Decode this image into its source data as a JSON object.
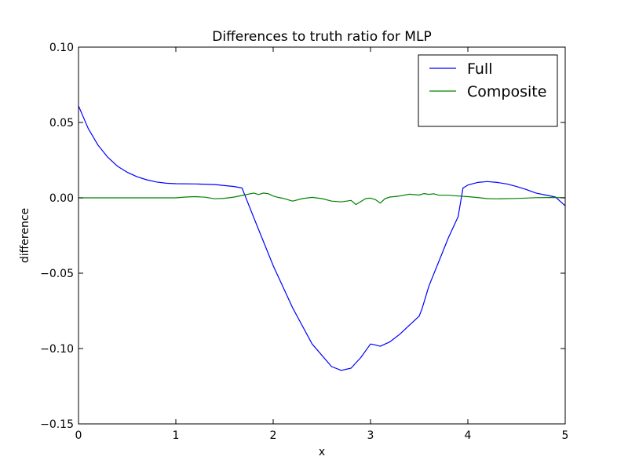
{
  "chart_data": {
    "type": "line",
    "title": "Differences to truth ratio for MLP",
    "xlabel": "x",
    "ylabel": "difference",
    "xlim": [
      0,
      5
    ],
    "ylim": [
      -0.15,
      0.1
    ],
    "xticks": [
      0,
      1,
      2,
      3,
      4,
      5
    ],
    "xtick_labels": [
      "0",
      "1",
      "2",
      "3",
      "4",
      "5"
    ],
    "yticks": [
      -0.15,
      -0.1,
      -0.05,
      0.0,
      0.05,
      0.1
    ],
    "ytick_labels": [
      "−0.15",
      "−0.10",
      "−0.05",
      "0.00",
      "0.05",
      "0.10"
    ],
    "grid": false,
    "legend_position": "top-right",
    "series": [
      {
        "name": "Full",
        "color": "#0000ff",
        "x": [
          0,
          0.1,
          0.2,
          0.3,
          0.4,
          0.5,
          0.6,
          0.7,
          0.8,
          0.9,
          1.0,
          1.2,
          1.4,
          1.6,
          1.68,
          1.8,
          2.0,
          2.2,
          2.4,
          2.6,
          2.7,
          2.8,
          2.9,
          3.0,
          3.04,
          3.1,
          3.2,
          3.3,
          3.4,
          3.5,
          3.53,
          3.6,
          3.7,
          3.8,
          3.9,
          3.95,
          4.0,
          4.1,
          4.2,
          4.3,
          4.4,
          4.5,
          4.6,
          4.7,
          4.8,
          4.9,
          5.0
        ],
        "y": [
          0.061,
          0.046,
          0.035,
          0.027,
          0.021,
          0.017,
          0.014,
          0.012,
          0.0105,
          0.0097,
          0.0094,
          0.0092,
          0.0088,
          0.0075,
          0.0065,
          -0.013,
          -0.045,
          -0.073,
          -0.097,
          -0.112,
          -0.1145,
          -0.113,
          -0.106,
          -0.097,
          -0.0975,
          -0.0985,
          -0.0955,
          -0.0905,
          -0.0845,
          -0.0785,
          -0.0735,
          -0.0585,
          -0.0425,
          -0.0265,
          -0.0125,
          0.0065,
          0.0085,
          0.0102,
          0.0108,
          0.0102,
          0.0092,
          0.0075,
          0.0055,
          0.0032,
          0.0018,
          0.0005,
          -0.0053
        ]
      },
      {
        "name": "Composite",
        "color": "#008000",
        "x": [
          0,
          0.3,
          0.6,
          0.9,
          1.0,
          1.1,
          1.2,
          1.3,
          1.4,
          1.5,
          1.6,
          1.7,
          1.8,
          1.85,
          1.9,
          1.95,
          2.0,
          2.05,
          2.1,
          2.2,
          2.3,
          2.4,
          2.5,
          2.6,
          2.7,
          2.8,
          2.85,
          2.9,
          2.95,
          3.0,
          3.05,
          3.1,
          3.15,
          3.2,
          3.3,
          3.4,
          3.5,
          3.55,
          3.6,
          3.65,
          3.7,
          3.8,
          3.9,
          4.0,
          4.1,
          4.2,
          4.3,
          4.5,
          4.7,
          4.85,
          5.0
        ],
        "y": [
          0.0,
          0.0,
          0.0,
          0.0,
          0.0,
          0.0005,
          0.0008,
          0.0004,
          -0.0006,
          -0.0003,
          0.0005,
          0.0018,
          0.0032,
          0.0022,
          0.0032,
          0.0027,
          0.0012,
          0.0003,
          -0.0003,
          -0.0022,
          -0.0005,
          0.0003,
          -0.0005,
          -0.0022,
          -0.0027,
          -0.0017,
          -0.0045,
          -0.0025,
          -0.0005,
          -0.0002,
          -0.0012,
          -0.0035,
          -0.0005,
          0.0005,
          0.0012,
          0.0024,
          0.0018,
          0.0028,
          0.0023,
          0.0027,
          0.0017,
          0.0017,
          0.0012,
          0.0008,
          0.0002,
          -0.0005,
          -0.0007,
          -0.0004,
          0.0001,
          0.0002,
          0.0001
        ]
      }
    ]
  }
}
